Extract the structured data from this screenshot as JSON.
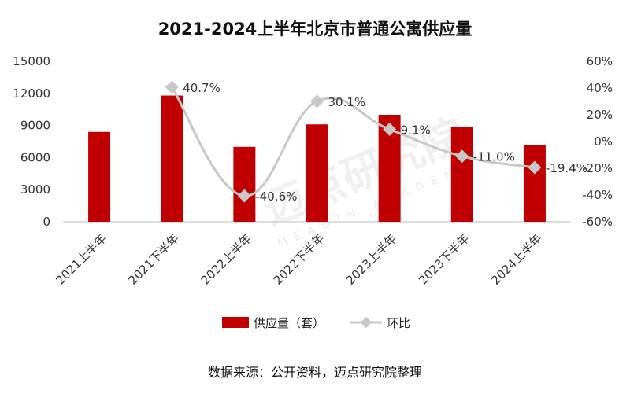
{
  "chart_data": {
    "type": "bar",
    "title": "2021-2024上半年北京市普通公寓供应量",
    "categories": [
      "2021上半年",
      "2021下半年",
      "2022上半年",
      "2022下半年",
      "2023上半年",
      "2023下半年",
      "2024上半年"
    ],
    "series": [
      {
        "name": "供应量（套）",
        "type": "bar",
        "axis": "left",
        "values": [
          8400,
          11800,
          7000,
          9100,
          10000,
          8900,
          7200
        ],
        "color": "#C00000"
      },
      {
        "name": "环比",
        "type": "line",
        "axis": "right",
        "values": [
          null,
          40.7,
          -40.6,
          30.1,
          9.1,
          -11.0,
          -19.4
        ],
        "color": "#C8C8C8"
      }
    ],
    "line_labels": [
      "",
      "40.7%",
      "-40.6%",
      "30.1%",
      "9.1%",
      "-11.0%",
      "-19.4%"
    ],
    "y_left": {
      "ylim": [
        0,
        15000
      ],
      "ticks": [
        "15000",
        "12000",
        "9000",
        "6000",
        "3000",
        "0"
      ]
    },
    "y_right": {
      "ylim": [
        -60,
        60
      ],
      "ticks": [
        "60%",
        "40%",
        "20%",
        "0%",
        "-20%",
        "-40%",
        "-60%"
      ]
    },
    "legend": {
      "placement": "bottom"
    },
    "grid": false
  },
  "source_note": "数据来源：公开资料，迈点研究院整理",
  "watermark": {
    "text": "迈点研究院",
    "subtext": "MEADIN ACADEMY"
  }
}
